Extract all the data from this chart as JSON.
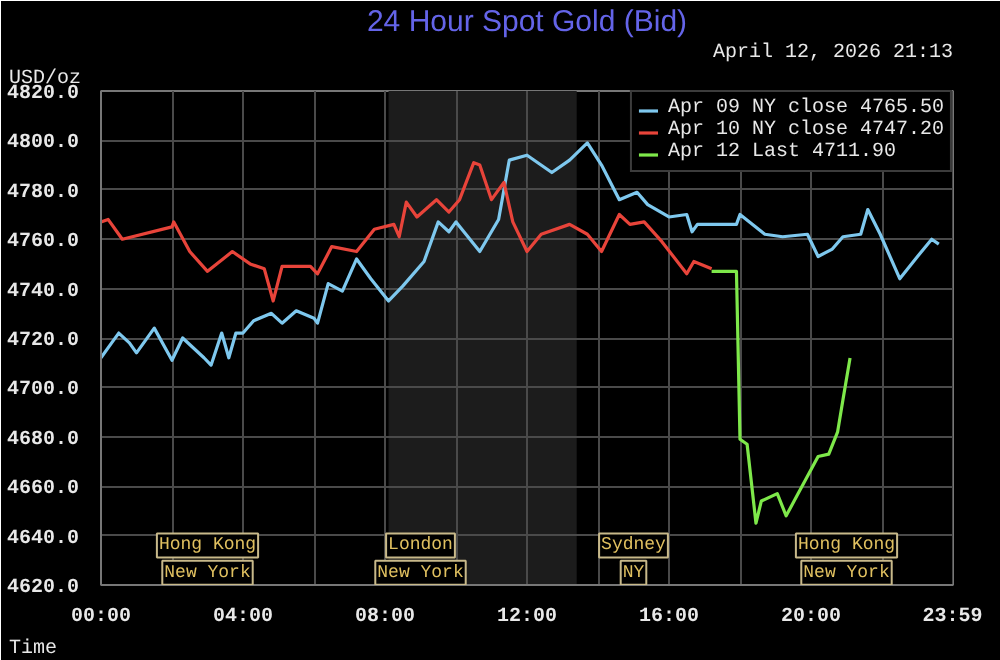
{
  "chart_data": {
    "type": "line",
    "title": "24 Hour Spot Gold (Bid)",
    "subtitle": "April 12, 2026 21:13",
    "ylabel": "USD/oz",
    "xlabel": "Time",
    "xlim": [
      0,
      24
    ],
    "ylim": [
      4620,
      4820
    ],
    "xticks": [
      {
        "value": 0,
        "label": "00:00"
      },
      {
        "value": 2,
        "label": null
      },
      {
        "value": 4,
        "label": "04:00"
      },
      {
        "value": 6,
        "label": null
      },
      {
        "value": 8,
        "label": "08:00"
      },
      {
        "value": 10,
        "label": null
      },
      {
        "value": 12,
        "label": "12:00"
      },
      {
        "value": 14,
        "label": null
      },
      {
        "value": 16,
        "label": "16:00"
      },
      {
        "value": 18,
        "label": null
      },
      {
        "value": 20,
        "label": "20:00"
      },
      {
        "value": 22,
        "label": null
      },
      {
        "value": 23.983,
        "label": "23:59"
      }
    ],
    "yticks": [
      {
        "value": 4620,
        "label": "4620.0"
      },
      {
        "value": 4640,
        "label": "4640.0"
      },
      {
        "value": 4660,
        "label": "4660.0"
      },
      {
        "value": 4680,
        "label": "4680.0"
      },
      {
        "value": 4700,
        "label": "4700.0"
      },
      {
        "value": 4720,
        "label": "4720.0"
      },
      {
        "value": 4740,
        "label": "4740.0"
      },
      {
        "value": 4760,
        "label": "4760.0"
      },
      {
        "value": 4780,
        "label": "4780.0"
      },
      {
        "value": 4800,
        "label": "4800.0"
      },
      {
        "value": 4820,
        "label": "4820.0"
      }
    ],
    "grid": true,
    "legend": "top right",
    "marker": "none",
    "line_style": "solid",
    "series": [
      {
        "name": "Apr 09 NY close 4765.50",
        "color": "#7ec8ee",
        "x": [
          0,
          0.3,
          0.5,
          0.8,
          1,
          1.5,
          2,
          2.3,
          2.9,
          3.1,
          3.4,
          3.6,
          3.8,
          4,
          4.3,
          4.8,
          5.1,
          5.5,
          6,
          6.1,
          6.4,
          6.8,
          7.2,
          7.6,
          8.1,
          8.5,
          9.1,
          9.5,
          9.8,
          10,
          10.67,
          11.2,
          11.5,
          12,
          12.7,
          13.2,
          13.7,
          14.1,
          14.6,
          15.1,
          15.4,
          16,
          16.5,
          16.65,
          16.8,
          17.9,
          18,
          18.7,
          19.2,
          19.9,
          20.2,
          20.6,
          20.9,
          21.4,
          21.6,
          21.95,
          22.5,
          23,
          23.4,
          23.6
        ],
        "values": [
          4712,
          4718,
          4722,
          4718,
          4714,
          4724,
          4711,
          4720,
          4712,
          4709,
          4722,
          4712,
          4722,
          4722,
          4727,
          4730,
          4726,
          4731,
          4728,
          4726,
          4742,
          4739,
          4752,
          4744,
          4735,
          4741,
          4751,
          4767,
          4763,
          4767,
          4755,
          4768,
          4792,
          4794,
          4787,
          4792,
          4799,
          4790,
          4776,
          4779,
          4774,
          4769,
          4770,
          4763,
          4766,
          4766,
          4770,
          4762,
          4761,
          4762,
          4753,
          4756,
          4761,
          4762,
          4772,
          4762,
          4744,
          4753,
          4760,
          4758
        ]
      },
      {
        "name": "Apr 10 NY close 4747.20",
        "color": "#e8443a",
        "x": [
          0,
          0.2,
          0.5,
          0.6,
          2,
          2.05,
          2.5,
          3,
          3.7,
          4.2,
          4.6,
          4.85,
          5.1,
          5.9,
          6.1,
          6.5,
          7.2,
          7.7,
          8.25,
          8.4,
          8.6,
          8.9,
          9.45,
          9.8,
          10.1,
          10.5,
          10.67,
          11,
          11.35,
          11.6,
          12,
          12.4,
          13.2,
          13.7,
          14.1,
          14.6,
          14.9,
          15.3,
          15.8,
          16.5,
          16.7,
          17.2
        ],
        "values": [
          4767,
          4768,
          4762,
          4760,
          4765,
          4767,
          4755,
          4747,
          4755,
          4750,
          4748,
          4735,
          4749,
          4749,
          4746,
          4757,
          4755,
          4764,
          4766,
          4761,
          4775,
          4769,
          4776,
          4771,
          4776,
          4791,
          4790,
          4776,
          4783,
          4767,
          4755,
          4762,
          4766,
          4762,
          4755,
          4770,
          4766,
          4767,
          4759,
          4746,
          4751,
          4748
        ]
      },
      {
        "name": "Apr 12 Last 4711.90",
        "color": "#7ee84a",
        "x": [
          17.2,
          17.9,
          18,
          18.2,
          18.45,
          18.6,
          19.05,
          19.3,
          19.6,
          20.2,
          20.5,
          20.75,
          20.9,
          21.1
        ],
        "values": [
          4747,
          4747,
          4679,
          4677,
          4645,
          4654,
          4657,
          4648,
          4656,
          4672,
          4673,
          4682,
          4695,
          4711.9
        ]
      }
    ],
    "bands": [
      {
        "axis": "x",
        "from": 8.1,
        "to": 13.4,
        "color": "#1c1c1c"
      }
    ],
    "annotations": [
      "New York",
      "New York",
      "NY",
      "New York",
      "Hong Kong",
      "London",
      "Sydney",
      "Hong Kong"
    ]
  }
}
